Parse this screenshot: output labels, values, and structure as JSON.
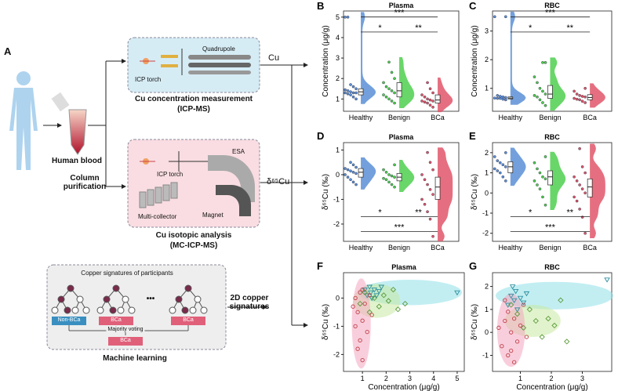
{
  "diagram": {
    "panel_label": "A",
    "blood": "Human blood",
    "purification": "Column purification",
    "icpms": {
      "torch": "ICP torch",
      "analyzer": "Quadrupole",
      "title": "Cu concentration measurement",
      "subtitle": "(ICP-MS)",
      "output": "Cu"
    },
    "mcicpms": {
      "esa": "ESA",
      "torch": "ICP torch",
      "collector": "Multi-collector",
      "magnet": "Magnet",
      "title": "Cu isotopic analysis",
      "subtitle": "(MC-ICP-MS)",
      "output": "δ⁶⁵Cu"
    },
    "ml": {
      "heading": "Copper signatures of participants",
      "leaves": [
        "Non-BCa",
        "BCa",
        "BCa"
      ],
      "ellipsis": "•••",
      "voting": "Majority voting",
      "result": "BCa",
      "title": "Machine learning"
    },
    "signatures": "2D copper signatures"
  },
  "chart_data": [
    {
      "type": "box",
      "label": "B",
      "title": "Plasma",
      "y_label": "Concentration (μg/g)",
      "categories": [
        "Healthy",
        "Benign",
        "BCa"
      ],
      "colors": [
        "#5b8fd6",
        "#4fcf4f",
        "#e0566a"
      ],
      "points": [
        [
          1.0,
          1.1,
          1.2,
          1.25,
          1.3,
          1.3,
          1.3,
          1.35,
          1.4,
          1.45,
          1.5,
          1.6,
          1.7,
          5.0,
          5.0
        ],
        [
          0.8,
          0.9,
          1.0,
          1.1,
          1.2,
          1.3,
          1.4,
          1.5,
          1.6,
          1.8,
          2.0,
          2.3,
          2.8
        ],
        [
          0.6,
          0.7,
          0.8,
          0.85,
          0.9,
          0.9,
          0.95,
          1.0,
          1.1,
          1.2,
          1.3,
          1.5,
          1.8
        ]
      ],
      "boxes": [
        [
          1.2,
          1.35,
          1.5
        ],
        [
          1.1,
          1.4,
          1.8
        ],
        [
          0.8,
          0.95,
          1.2
        ]
      ],
      "annotations": [
        "***",
        "*",
        "**"
      ],
      "ylim": [
        0.4,
        5.3
      ],
      "yticks": [
        1,
        2,
        3,
        4,
        5
      ]
    },
    {
      "type": "box",
      "label": "C",
      "title": "RBC",
      "y_label": "Concentration (μg/g)",
      "categories": [
        "Healthy",
        "Benign",
        "BCa"
      ],
      "colors": [
        "#5b8fd6",
        "#4fcf4f",
        "#e0566a"
      ],
      "points": [
        [
          0.6,
          0.62,
          0.65,
          0.65,
          0.66,
          0.68,
          0.7,
          0.72,
          0.75,
          3.5,
          3.5
        ],
        [
          0.4,
          0.5,
          0.6,
          0.7,
          0.75,
          0.8,
          0.9,
          1.0,
          1.2,
          1.4,
          1.9,
          1.9
        ],
        [
          0.5,
          0.55,
          0.6,
          0.62,
          0.65,
          0.7,
          0.72,
          0.75,
          0.8,
          0.9,
          1.0
        ]
      ],
      "boxes": [
        [
          0.63,
          0.66,
          0.7
        ],
        [
          0.65,
          0.8,
          1.1
        ],
        [
          0.6,
          0.68,
          0.78
        ]
      ],
      "annotations": [
        "***",
        "*",
        "**"
      ],
      "ylim": [
        0.2,
        3.7
      ],
      "yticks": [
        1,
        2,
        3
      ]
    },
    {
      "type": "box",
      "label": "D",
      "title": "Plasma",
      "y_label": "δ⁶⁵Cu (‰)",
      "categories": [
        "Healthy",
        "Benign",
        "BCa"
      ],
      "colors": [
        "#5b8fd6",
        "#4fcf4f",
        "#e0566a"
      ],
      "points": [
        [
          -0.4,
          -0.3,
          -0.2,
          -0.1,
          0,
          0.05,
          0.1,
          0.15,
          0.2,
          0.25,
          0.3,
          0.4,
          0.5
        ],
        [
          -0.5,
          -0.4,
          -0.3,
          -0.2,
          -0.15,
          -0.1,
          -0.05,
          0,
          0.1,
          0.2,
          0.4
        ],
        [
          -2.5,
          -1.8,
          -1.5,
          -1.2,
          -1.0,
          -0.8,
          -0.6,
          -0.4,
          -0.2,
          0,
          0.2,
          0.5,
          0.9
        ]
      ],
      "boxes": [
        [
          -0.1,
          0.1,
          0.25
        ],
        [
          -0.25,
          -0.1,
          0.05
        ],
        [
          -1.0,
          -0.5,
          -0.1
        ]
      ],
      "annotations": [
        "*",
        "**",
        "***"
      ],
      "ylim": [
        -2.7,
        1.3
      ],
      "yticks": [
        -2,
        -1,
        0,
        1
      ]
    },
    {
      "type": "box",
      "label": "E",
      "title": "RBC",
      "y_label": "δ⁶⁵Cu (‰)",
      "categories": [
        "Healthy",
        "Benign",
        "BCa"
      ],
      "colors": [
        "#5b8fd6",
        "#4fcf4f",
        "#e0566a"
      ],
      "points": [
        [
          0.6,
          0.8,
          1.0,
          1.1,
          1.2,
          1.3,
          1.4,
          1.5,
          1.6,
          1.8,
          2.0
        ],
        [
          -0.6,
          -0.2,
          0.2,
          0.4,
          0.6,
          0.7,
          0.8,
          1.0,
          1.2,
          1.5,
          1.8
        ],
        [
          -2.0,
          -1.2,
          -0.8,
          -0.4,
          -0.2,
          0,
          0.2,
          0.4,
          0.6,
          0.8,
          1.0,
          1.3,
          2.2
        ]
      ],
      "boxes": [
        [
          1.0,
          1.3,
          1.55
        ],
        [
          0.4,
          0.8,
          1.1
        ],
        [
          -0.2,
          0.3,
          0.7
        ]
      ],
      "annotations": [
        "*",
        "**",
        "***"
      ],
      "ylim": [
        -2.4,
        2.5
      ],
      "yticks": [
        -2,
        -1,
        0,
        1,
        2
      ]
    },
    {
      "type": "scatter",
      "label": "F",
      "title": "Plasma",
      "x_label": "Concentration (μg/g)",
      "y_label": "δ⁶⁵Cu (‰)",
      "series": [
        {
          "color": "#2f8fa0",
          "fill": "#8fe0e8",
          "marker": "triangle",
          "x": [
            1.1,
            1.2,
            1.3,
            1.35,
            1.4,
            1.5,
            1.6,
            1.7,
            1.8,
            5.0
          ],
          "y": [
            0.3,
            0.1,
            0.4,
            0.2,
            0.0,
            0.3,
            0.1,
            0.25,
            0.4,
            0.2
          ],
          "ellipse": {
            "cx": 3.0,
            "cy": 0.2,
            "rx": 2.2,
            "ry": 0.45
          }
        },
        {
          "color": "#5a9a3a",
          "fill": "#c8eaa2",
          "marker": "diamond",
          "x": [
            0.9,
            1.1,
            1.3,
            1.5,
            1.7,
            1.9,
            2.1,
            2.3,
            2.5,
            2.8
          ],
          "y": [
            -0.2,
            0.2,
            -0.5,
            0.0,
            -0.3,
            0.1,
            -0.1,
            0.3,
            -0.4,
            -0.2
          ],
          "ellipse": {
            "cx": 1.6,
            "cy": -0.1,
            "rx": 1.0,
            "ry": 0.6
          }
        },
        {
          "color": "#c0404a",
          "fill": "#f4a6bf",
          "marker": "circle",
          "x": [
            0.6,
            0.7,
            0.8,
            0.9,
            0.9,
            1.0,
            1.0,
            1.1,
            1.2,
            1.3,
            1.4,
            0.8,
            1.0,
            0.7
          ],
          "y": [
            -0.3,
            -1.0,
            -0.5,
            0.2,
            -1.5,
            -0.8,
            -2.2,
            -0.2,
            -1.2,
            0.1,
            -0.6,
            -1.8,
            0.3,
            0.0
          ],
          "ellipse": {
            "cx": 0.95,
            "cy": -0.9,
            "rx": 0.4,
            "ry": 1.6
          }
        }
      ],
      "xlim": [
        0.2,
        5.3
      ],
      "xticks": [
        1,
        2,
        3,
        4,
        5
      ],
      "ylim": [
        -2.6,
        0.9
      ],
      "yticks": [
        -2,
        -1,
        0
      ]
    },
    {
      "type": "scatter",
      "label": "G",
      "title": "RBC",
      "x_label": "Concentration (μg/g)",
      "y_label": "δ⁶⁵Cu (‰)",
      "series": [
        {
          "color": "#2f8fa0",
          "fill": "#8fe0e8",
          "marker": "triangle",
          "x": [
            0.6,
            0.7,
            0.75,
            0.8,
            0.85,
            0.9,
            1.0,
            1.1,
            1.2,
            3.8
          ],
          "y": [
            1.2,
            1.6,
            2.0,
            1.4,
            1.8,
            1.0,
            1.5,
            1.3,
            1.7,
            2.3
          ],
          "ellipse": {
            "cx": 2.1,
            "cy": 1.6,
            "rx": 1.9,
            "ry": 0.6
          }
        },
        {
          "color": "#5a9a3a",
          "fill": "#c8eaa2",
          "marker": "diamond",
          "x": [
            0.7,
            0.9,
            1.1,
            1.3,
            1.5,
            1.7,
            1.9,
            2.1,
            2.3,
            2.5
          ],
          "y": [
            1.2,
            0.8,
            0.2,
            1.0,
            0.5,
            -0.2,
            0.6,
            0.3,
            1.4,
            -0.4
          ],
          "ellipse": {
            "cx": 1.4,
            "cy": 0.5,
            "rx": 0.9,
            "ry": 0.7
          }
        },
        {
          "color": "#c0404a",
          "fill": "#f4a6bf",
          "marker": "circle",
          "x": [
            0.3,
            0.4,
            0.5,
            0.6,
            0.6,
            0.7,
            0.8,
            0.8,
            0.9,
            1.0,
            1.1,
            1.2,
            0.5,
            0.7
          ],
          "y": [
            0.2,
            -0.6,
            0.5,
            -1.0,
            0.9,
            0.0,
            -1.3,
            0.6,
            -0.4,
            0.3,
            1.2,
            -0.2,
            1.4,
            -0.8
          ],
          "ellipse": {
            "cx": 0.7,
            "cy": 0.1,
            "rx": 0.45,
            "ry": 1.6
          }
        }
      ],
      "xlim": [
        0.1,
        3.95
      ],
      "xticks": [
        1,
        2,
        3
      ],
      "ylim": [
        -1.7,
        2.6
      ],
      "yticks": [
        -1,
        0,
        1,
        2
      ]
    }
  ]
}
